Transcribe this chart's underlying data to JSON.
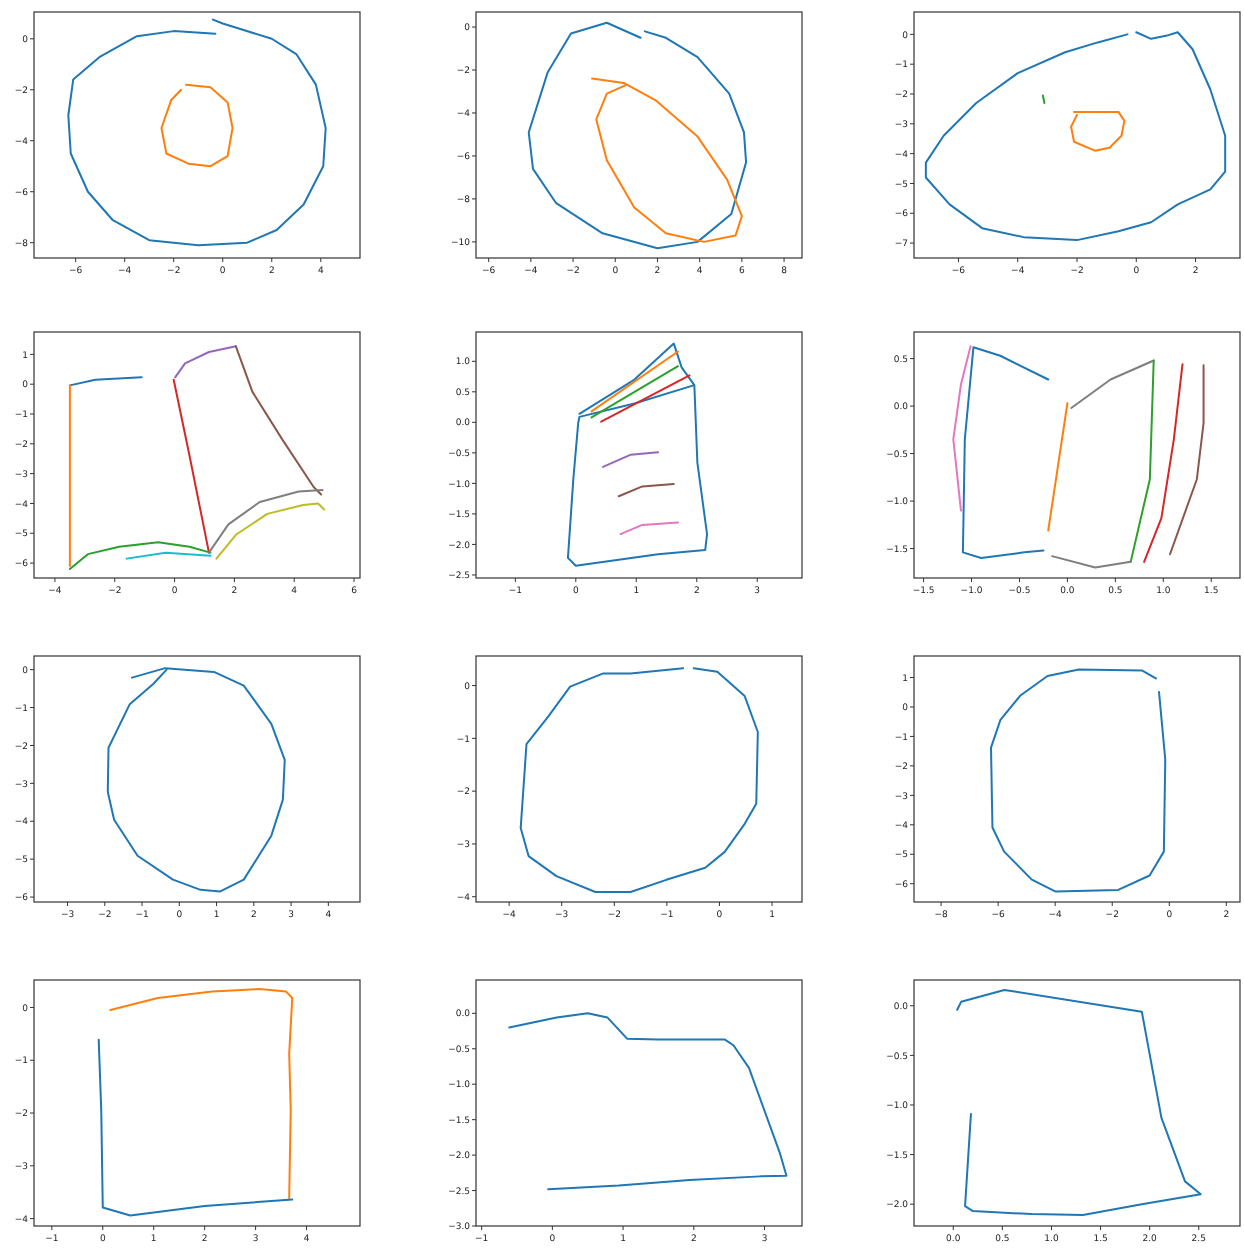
{
  "chart_data": [
    {
      "type": "line",
      "xlim": [
        -7.7,
        5.6
      ],
      "ylim": [
        -8.6,
        1.05
      ],
      "xticks": [
        -6,
        -4,
        -2,
        0,
        2,
        4
      ],
      "yticks": [
        0,
        -2,
        -4,
        -6,
        -8
      ],
      "series": [
        {
          "color": "#1f77b4",
          "x": [
            -0.3,
            -2,
            -3.5,
            -5,
            -6.1,
            -6.3,
            -6.2,
            -5.5,
            -4.5,
            -3,
            -1,
            1,
            2.2,
            3.3,
            4.1,
            4.2,
            3.8,
            3,
            2,
            0,
            -0.4
          ],
          "values": [
            0.2,
            0.3,
            0.1,
            -0.7,
            -1.6,
            -3,
            -4.5,
            -6,
            -7.1,
            -7.9,
            -8.1,
            -8,
            -7.5,
            -6.5,
            -5,
            -3.5,
            -1.8,
            -0.6,
            0,
            0.6,
            0.75
          ]
        },
        {
          "color": "#ff7f0e",
          "x": [
            -1.5,
            -0.5,
            0.2,
            0.4,
            0.2,
            -0.5,
            -1.4,
            -2.3,
            -2.5,
            -2.1,
            -1.7
          ],
          "values": [
            -1.8,
            -1.9,
            -2.5,
            -3.5,
            -4.6,
            -5,
            -4.9,
            -4.5,
            -3.5,
            -2.4,
            -2
          ]
        }
      ]
    },
    {
      "type": "line",
      "xlim": [
        -6.6,
        8.85
      ],
      "ylim": [
        -10.75,
        0.7
      ],
      "xticks": [
        -6,
        -4,
        -2,
        0,
        2,
        4,
        6,
        8
      ],
      "yticks": [
        0,
        -2,
        -4,
        -6,
        -8,
        -10
      ],
      "series": [
        {
          "color": "#1f77b4",
          "x": [
            1.2,
            -0.4,
            -2.1,
            -3.2,
            -4.1,
            -3.9,
            -2.8,
            -0.6,
            2,
            3.9,
            5.5,
            6.2,
            6.1,
            5.4,
            3.9,
            2.4,
            1.4
          ],
          "values": [
            -0.5,
            0.2,
            -0.3,
            -2.1,
            -4.9,
            -6.6,
            -8.2,
            -9.6,
            -10.3,
            -10,
            -8.7,
            -6.3,
            -4.9,
            -3.1,
            -1.4,
            -0.5,
            -0.2
          ]
        },
        {
          "color": "#ff7f0e",
          "x": [
            -1.1,
            0.4,
            1.9,
            3.9,
            5.3,
            6,
            5.7,
            4.2,
            2.4,
            0.9,
            -0.4,
            -0.9,
            -0.4,
            0.5
          ],
          "values": [
            -2.4,
            -2.6,
            -3.4,
            -5.1,
            -7.1,
            -8.8,
            -9.7,
            -10,
            -9.6,
            -8.4,
            -6.2,
            -4.3,
            -3.1,
            -2.7
          ]
        }
      ]
    },
    {
      "type": "line",
      "xlim": [
        -7.5,
        3.5
      ],
      "ylim": [
        -7.5,
        0.75
      ],
      "xticks": [
        -6,
        -4,
        -2,
        0,
        2
      ],
      "yticks": [
        0,
        -1,
        -2,
        -3,
        -4,
        -5,
        -6,
        -7
      ],
      "series": [
        {
          "color": "#1f77b4",
          "x": [
            -0.3,
            -1.3,
            -2.4,
            -4,
            -5.4,
            -6.5,
            -7.1,
            -7.1,
            -6.3,
            -5.2,
            -3.8,
            -2,
            -0.6,
            0.5,
            1.4,
            2.5,
            3,
            3,
            2.5,
            1.9,
            1.4,
            1,
            0.5,
            0
          ],
          "values": [
            0,
            -0.27,
            -0.6,
            -1.3,
            -2.3,
            -3.4,
            -4.3,
            -4.8,
            -5.7,
            -6.5,
            -6.8,
            -6.9,
            -6.6,
            -6.3,
            -5.7,
            -5.2,
            -4.6,
            -3.4,
            -1.85,
            -0.5,
            0.07,
            -0.05,
            -0.15,
            0.07
          ]
        },
        {
          "color": "#ff7f0e",
          "x": [
            -2.1,
            -0.6,
            -0.4,
            -0.5,
            -0.9,
            -1.4,
            -2.1,
            -2.2,
            -2
          ],
          "values": [
            -2.6,
            -2.6,
            -2.9,
            -3.4,
            -3.8,
            -3.9,
            -3.6,
            -3.1,
            -2.7
          ]
        },
        {
          "color": "#2ca02c",
          "x": [
            -3.15,
            -3.1
          ],
          "values": [
            -2.05,
            -2.3
          ]
        }
      ]
    },
    {
      "type": "line",
      "xlim": [
        -4.7,
        6.2
      ],
      "ylim": [
        -6.5,
        1.75
      ],
      "xticks": [
        -4,
        -2,
        0,
        2,
        4,
        6
      ],
      "yticks": [
        1,
        0,
        -1,
        -2,
        -3,
        -4,
        -5,
        -6
      ],
      "series": [
        {
          "color": "#1f77b4",
          "x": [
            -3.5,
            -2.65,
            -1.1
          ],
          "values": [
            -0.04,
            0.15,
            0.23
          ]
        },
        {
          "color": "#ff7f0e",
          "x": [
            -3.5,
            -3.5
          ],
          "values": [
            -0.04,
            -6.1
          ]
        },
        {
          "color": "#2ca02c",
          "x": [
            -3.5,
            -2.9,
            -1.85,
            -0.55,
            0.5,
            1.2
          ],
          "values": [
            -6.2,
            -5.7,
            -5.45,
            -5.3,
            -5.45,
            -5.65
          ]
        },
        {
          "color": "#d62728",
          "x": [
            -0.03,
            0.5,
            1.15
          ],
          "values": [
            0.15,
            -2.4,
            -5.65
          ]
        },
        {
          "color": "#9467bd",
          "x": [
            0.02,
            0.35,
            1.15,
            2.05
          ],
          "values": [
            0.23,
            0.7,
            1.08,
            1.27
          ]
        },
        {
          "color": "#8c564b",
          "x": [
            2.05,
            2.6,
            3.6,
            4.65,
            4.9
          ],
          "values": [
            1.27,
            -0.25,
            -1.85,
            -3.45,
            -3.7
          ]
        },
        {
          "color": "#7f7f7f",
          "x": [
            1.15,
            1.8,
            2.85,
            4.15,
            4.95
          ],
          "values": [
            -5.65,
            -4.7,
            -3.95,
            -3.6,
            -3.55
          ]
        },
        {
          "color": "#bcbd22",
          "x": [
            1.4,
            2.05,
            3.1,
            4.3,
            4.8,
            5
          ],
          "values": [
            -5.85,
            -5.05,
            -4.35,
            -4.05,
            -4,
            -4.2
          ]
        },
        {
          "color": "#17becf",
          "x": [
            -1.6,
            -0.3,
            1.2
          ],
          "values": [
            -5.85,
            -5.65,
            -5.75
          ]
        }
      ]
    },
    {
      "type": "line",
      "xlim": [
        -1.65,
        3.74
      ],
      "ylim": [
        -2.55,
        1.48
      ],
      "xticks": [
        -1,
        0,
        1,
        2,
        3
      ],
      "yticks": [
        {
          "value": 1,
          "label": "1.0"
        },
        {
          "value": 0.5,
          "label": "0.5"
        },
        {
          "value": 0,
          "label": "0.0"
        },
        {
          "value": -0.5,
          "label": "−0.5"
        },
        {
          "value": -1,
          "label": "−1.0"
        },
        {
          "value": -1.5,
          "label": "−1.5"
        },
        {
          "value": -2,
          "label": "−2.0"
        },
        {
          "value": -2.5,
          "label": "−2.5"
        }
      ],
      "series": [
        {
          "color": "#1f77b4",
          "x": [
            0.06,
            0.97,
            1.62,
            1.75,
            1.96,
            2.01,
            2.17,
            2.14,
            1.36,
            0,
            -0.13,
            -0.04,
            0.04,
            0.06,
            0.97,
            1.96
          ],
          "values": [
            0.14,
            0.7,
            1.29,
            0.9,
            0.61,
            -0.66,
            -1.83,
            -2.09,
            -2.16,
            -2.35,
            -2.22,
            -0.92,
            -0.01,
            0.09,
            0.31,
            0.61
          ]
        },
        {
          "color": "#ff7f0e",
          "x": [
            0.26,
            1.69
          ],
          "values": [
            0.18,
            1.16
          ]
        },
        {
          "color": "#2ca02c",
          "x": [
            0.26,
            1.69
          ],
          "values": [
            0.08,
            0.92
          ]
        },
        {
          "color": "#d62728",
          "x": [
            0.42,
            1.88
          ],
          "values": [
            0.01,
            0.77
          ]
        },
        {
          "color": "#9467bd",
          "x": [
            0.45,
            0.91,
            1.36
          ],
          "values": [
            -0.73,
            -0.53,
            -0.49
          ]
        },
        {
          "color": "#8c564b",
          "x": [
            0.71,
            1.1,
            1.62
          ],
          "values": [
            -1.21,
            -1.05,
            -1.01
          ]
        },
        {
          "color": "#e377c2",
          "x": [
            0.74,
            1.1,
            1.69
          ],
          "values": [
            -1.83,
            -1.68,
            -1.64
          ]
        }
      ]
    },
    {
      "type": "line",
      "xlim": [
        -1.6,
        1.8
      ],
      "ylim": [
        -1.81,
        0.78
      ],
      "xticks": [
        {
          "value": -1.5,
          "label": "−1.5"
        },
        {
          "value": -1,
          "label": "−1.0"
        },
        {
          "value": -0.5,
          "label": "−0.5"
        },
        {
          "value": 0,
          "label": "0.0"
        },
        {
          "value": 0.5,
          "label": "0.5"
        },
        {
          "value": 1,
          "label": "1.0"
        },
        {
          "value": 1.5,
          "label": "1.5"
        }
      ],
      "yticks": [
        {
          "value": 0.5,
          "label": "0.5"
        },
        {
          "value": 0,
          "label": "0.0"
        },
        {
          "value": -0.5,
          "label": "−0.5"
        },
        {
          "value": -1,
          "label": "−1.0"
        },
        {
          "value": -1.5,
          "label": "−1.5"
        }
      ],
      "series": [
        {
          "color": "#e377c2",
          "x": [
            -1.01,
            -1.11,
            -1.19,
            -1.11
          ],
          "values": [
            0.63,
            0.23,
            -0.35,
            -1.1
          ]
        },
        {
          "color": "#1f77b4",
          "x": [
            -0.2,
            -0.7,
            -0.98,
            -1.07,
            -1.09,
            -0.9,
            -0.45,
            -0.25
          ],
          "values": [
            0.28,
            0.53,
            0.62,
            -0.35,
            -1.54,
            -1.6,
            -1.54,
            -1.52
          ]
        },
        {
          "color": "#ff7f0e",
          "x": [
            0,
            -0.2
          ],
          "values": [
            0.03,
            -1.31
          ]
        },
        {
          "color": "#7f7f7f",
          "x": [
            0.04,
            0.45,
            0.9
          ],
          "values": [
            -0.02,
            0.28,
            0.48
          ]
        },
        {
          "color": "#2ca02c",
          "x": [
            0.9,
            0.86,
            0.66
          ],
          "values": [
            0.48,
            -0.77,
            -1.64
          ]
        },
        {
          "color": "#7f7f7f",
          "x": [
            -0.16,
            0.29,
            0.66
          ],
          "values": [
            -1.58,
            -1.7,
            -1.64
          ]
        },
        {
          "color": "#d62728",
          "x": [
            1.2,
            1.11,
            0.98,
            0.8
          ],
          "values": [
            0.44,
            -0.35,
            -1.18,
            -1.64
          ]
        },
        {
          "color": "#8c564b",
          "x": [
            1.42,
            1.42,
            1.35,
            1.07
          ],
          "values": [
            0.43,
            -0.18,
            -0.77,
            -1.56
          ]
        }
      ]
    },
    {
      "type": "line",
      "xlim": [
        -3.9,
        4.85
      ],
      "ylim": [
        -6.13,
        0.36
      ],
      "xticks": [
        -3,
        -2,
        -1,
        0,
        1,
        2,
        3,
        4
      ],
      "yticks": [
        0,
        -1,
        -2,
        -3,
        -4,
        -5,
        -6
      ],
      "series": [
        {
          "color": "#1f77b4",
          "x": [
            -1.27,
            -0.38,
            0.93,
            1.73,
            2.47,
            2.83,
            2.78,
            2.47,
            1.73,
            1.1,
            0.57,
            -0.17,
            -1.12,
            -1.75,
            -1.92,
            -1.9,
            -1.33,
            -0.7,
            -0.34
          ],
          "values": [
            -0.21,
            0.04,
            -0.06,
            -0.42,
            -1.43,
            -2.38,
            -3.43,
            -4.38,
            -5.54,
            -5.85,
            -5.81,
            -5.54,
            -4.91,
            -3.96,
            -3.22,
            -2.06,
            -0.91,
            -0.38,
            0
          ]
        }
      ]
    },
    {
      "type": "line",
      "xlim": [
        -4.63,
        1.57
      ],
      "ylim": [
        -4.1,
        0.56
      ],
      "xticks": [
        -4,
        -3,
        -2,
        -1,
        0,
        1
      ],
      "yticks": [
        0,
        -1,
        -2,
        -3,
        -4
      ],
      "series": [
        {
          "color": "#1f77b4",
          "x": [
            -0.69,
            -1.69,
            -2.21,
            -2.84,
            -3.25,
            -3.67,
            -3.78,
            -3.63,
            -3.1,
            -2.36,
            -1.69,
            -1.01,
            -0.27,
            0.1,
            0.48,
            0.7,
            0.73,
            0.48,
            -0.04,
            -0.49
          ],
          "values": [
            0.33,
            0.23,
            0.23,
            -0.02,
            -0.58,
            -1.11,
            -2.7,
            -3.23,
            -3.61,
            -3.91,
            -3.91,
            -3.68,
            -3.45,
            -3.15,
            -2.62,
            -2.24,
            -0.88,
            -0.2,
            0.26,
            0.33
          ]
        }
      ]
    },
    {
      "type": "line",
      "xlim": [
        -8.95,
        2.48
      ],
      "ylim": [
        -6.62,
        1.73
      ],
      "xticks": [
        -8,
        -6,
        -4,
        -2,
        0,
        2
      ],
      "yticks": [
        1,
        0,
        -1,
        -2,
        -3,
        -4,
        -5,
        -6
      ],
      "series": [
        {
          "color": "#1f77b4",
          "x": [
            -0.47,
            -0.96,
            -3.17,
            -4.27,
            -5.23,
            -5.92,
            -6.25,
            -6.2,
            -5.79,
            -4.82,
            -4,
            -1.79,
            -0.69,
            -0.19,
            -0.14,
            -0.36
          ],
          "values": [
            0.97,
            1.24,
            1.27,
            1.05,
            0.38,
            -0.44,
            -1.38,
            -4.09,
            -4.91,
            -5.86,
            -6.26,
            -6.21,
            -5.72,
            -4.91,
            -1.79,
            0.51
          ]
        }
      ]
    },
    {
      "type": "line",
      "xlim": [
        -1.35,
        5.05
      ],
      "ylim": [
        -4.14,
        0.52
      ],
      "xticks": [
        -1,
        0,
        1,
        2,
        3,
        4
      ],
      "yticks": [
        0,
        -1,
        -2,
        -3,
        -4
      ],
      "series": [
        {
          "color": "#ff7f0e",
          "x": [
            0.15,
            1.08,
            2.15,
            3.08,
            3.6,
            3.72,
            3.66,
            3.69,
            3.66
          ],
          "values": [
            -0.05,
            0.18,
            0.3,
            0.35,
            0.3,
            0.18,
            -0.88,
            -1.94,
            -3.61
          ]
        },
        {
          "color": "#1f77b4",
          "x": [
            -0.08,
            -0.03,
            0,
            0.54,
            2,
            3.72
          ],
          "values": [
            -0.61,
            -1.94,
            -3.79,
            -3.94,
            -3.76,
            -3.64
          ]
        }
      ]
    },
    {
      "type": "line",
      "xlim": [
        -1.08,
        3.53
      ],
      "ylim": [
        -3,
        0.47
      ],
      "xticks": [
        -1,
        0,
        1,
        2,
        3
      ],
      "yticks": [
        {
          "value": 0,
          "label": "0.0"
        },
        {
          "value": -0.5,
          "label": "−0.5"
        },
        {
          "value": -1,
          "label": "−1.0"
        },
        {
          "value": -1.5,
          "label": "−1.5"
        },
        {
          "value": -2,
          "label": "−2.0"
        },
        {
          "value": -2.5,
          "label": "−2.5"
        },
        {
          "value": -3,
          "label": "−3.0"
        }
      ],
      "series": [
        {
          "color": "#1f77b4",
          "x": [
            -0.61,
            0.06,
            0.5,
            0.78,
            1.06,
            1.5,
            2.44,
            2.56,
            2.78,
            3.22,
            3.31,
            2.94,
            1.94,
            0.94,
            -0.06
          ],
          "values": [
            -0.2,
            -0.06,
            0,
            -0.06,
            -0.36,
            -0.37,
            -0.37,
            -0.45,
            -0.77,
            -1.98,
            -2.29,
            -2.3,
            -2.35,
            -2.43,
            -2.48
          ]
        }
      ]
    },
    {
      "type": "line",
      "xlim": [
        -0.4,
        2.92
      ],
      "ylim": [
        -2.22,
        0.26
      ],
      "xticks": [
        {
          "value": 0,
          "label": "0.0"
        },
        {
          "value": 0.5,
          "label": "0.5"
        },
        {
          "value": 1,
          "label": "1.0"
        },
        {
          "value": 1.5,
          "label": "1.5"
        },
        {
          "value": 2,
          "label": "2.0"
        },
        {
          "value": 2.5,
          "label": "2.5"
        }
      ],
      "yticks": [
        {
          "value": 0,
          "label": "0.0"
        },
        {
          "value": -0.5,
          "label": "−0.5"
        },
        {
          "value": -1,
          "label": "−1.0"
        },
        {
          "value": -1.5,
          "label": "−1.5"
        },
        {
          "value": -2,
          "label": "−2.0"
        }
      ],
      "series": [
        {
          "color": "#1f77b4",
          "x": [
            0.18,
            0.12,
            0.2,
            0.8,
            1.32,
            1.92,
            2.52,
            2.36,
            2.12,
            1.92,
            0.52,
            0.08,
            0.04
          ],
          "values": [
            -1.09,
            -2.02,
            -2.07,
            -2.1,
            -2.11,
            -2,
            -1.9,
            -1.77,
            -1.13,
            -0.06,
            0.16,
            0.04,
            -0.04
          ]
        }
      ]
    }
  ]
}
